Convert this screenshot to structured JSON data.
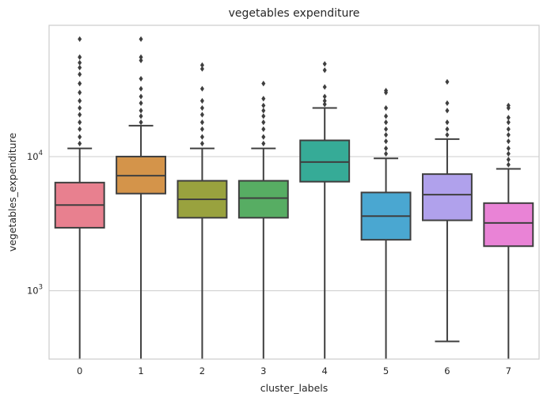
{
  "chart_data": {
    "type": "boxplot",
    "title": "vegetables expenditure",
    "xlabel": "cluster_labels",
    "ylabel": "vegetables_expenditure",
    "yscale": "log",
    "ylim": [
      310,
      95000
    ],
    "grid": "horizontal",
    "y_ticks": [
      {
        "value": 1000,
        "base": "10",
        "exp": "3"
      },
      {
        "value": 10000,
        "base": "10",
        "exp": "4"
      }
    ],
    "categories": [
      "0",
      "1",
      "2",
      "3",
      "4",
      "5",
      "6",
      "7"
    ],
    "boxes": [
      {
        "category": "0",
        "color": "#e8808f",
        "whisker_low": 310,
        "q1": 2950,
        "median": 4350,
        "q3": 6400,
        "whisker_high": 11500,
        "outliers": [
          12500,
          14000,
          16000,
          18000,
          20500,
          23000,
          26000,
          30000,
          35000,
          41000,
          46000,
          50000,
          55000,
          75000
        ]
      },
      {
        "category": "1",
        "color": "#d4944a",
        "whisker_low": 310,
        "q1": 5300,
        "median": 7200,
        "q3": 10000,
        "whisker_high": 17000,
        "outliers": [
          18000,
          20000,
          22000,
          25000,
          28000,
          32000,
          38000,
          52000,
          55000,
          75000
        ]
      },
      {
        "category": "2",
        "color": "#99a23e",
        "whisker_low": 310,
        "q1": 3500,
        "median": 4800,
        "q3": 6600,
        "whisker_high": 11500,
        "outliers": [
          12500,
          14000,
          16000,
          18000,
          20500,
          23000,
          26000,
          32000,
          45000,
          48000
        ]
      },
      {
        "category": "3",
        "color": "#57ad63",
        "whisker_low": 310,
        "q1": 3500,
        "median": 4900,
        "q3": 6600,
        "whisker_high": 11500,
        "outliers": [
          12500,
          14000,
          16000,
          18000,
          20000,
          22000,
          24000,
          27000,
          35000
        ]
      },
      {
        "category": "4",
        "color": "#36ab97",
        "whisker_low": 310,
        "q1": 6500,
        "median": 9100,
        "q3": 13200,
        "whisker_high": 23000,
        "outliers": [
          24500,
          26000,
          28000,
          33000,
          44000,
          49000
        ]
      },
      {
        "category": "5",
        "color": "#4aa7d1",
        "whisker_low": 310,
        "q1": 2400,
        "median": 3600,
        "q3": 5400,
        "whisker_high": 9700,
        "outliers": [
          10500,
          11500,
          13000,
          14500,
          16000,
          18000,
          20000,
          23000,
          30000,
          31000
        ]
      },
      {
        "category": "6",
        "color": "#b0a1ec",
        "whisker_low": 420,
        "q1": 3350,
        "median": 5200,
        "q3": 7400,
        "whisker_high": 13500,
        "outliers": [
          14500,
          16000,
          18000,
          22000,
          25000,
          36000
        ]
      },
      {
        "category": "7",
        "color": "#e983d6",
        "whisker_low": 310,
        "q1": 2150,
        "median": 3200,
        "q3": 4500,
        "whisker_high": 8100,
        "outliers": [
          8700,
          9500,
          10500,
          11500,
          13000,
          14500,
          16000,
          18000,
          19500,
          23000,
          24000
        ]
      }
    ]
  }
}
